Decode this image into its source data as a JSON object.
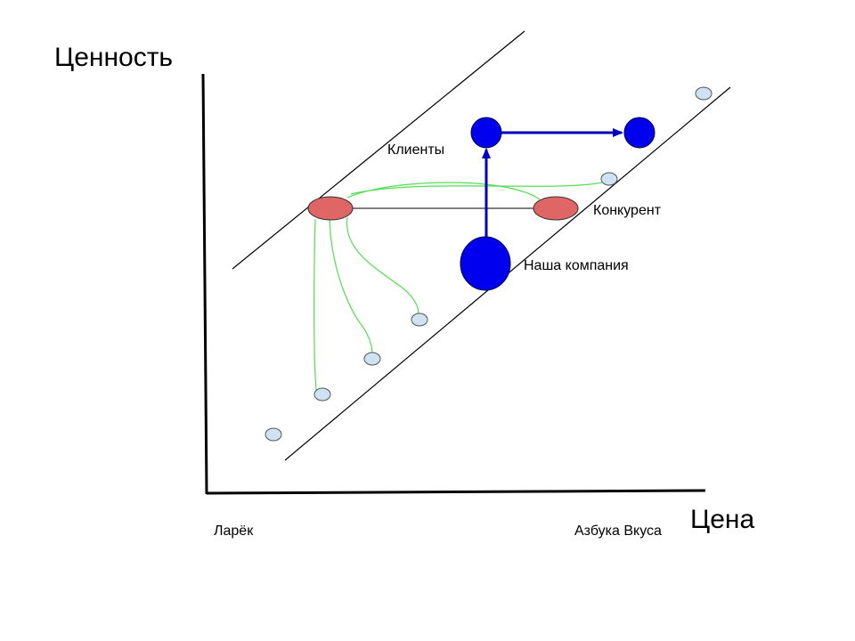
{
  "axes": {
    "y_title": "Ценность",
    "x_title": "Цена",
    "x_low_label": "Ларёк",
    "x_high_label": "Азбука Вкуса"
  },
  "labels": {
    "clients": "Клиенты",
    "competitor": "Конкурент",
    "our_company": "Наша компания"
  },
  "colors": {
    "company": "#0000ee",
    "competitor": "#e06666",
    "client": "#cfe2f3",
    "client_link": "#55dd55",
    "arrow": "#0000bb",
    "axis": "#000000"
  }
}
